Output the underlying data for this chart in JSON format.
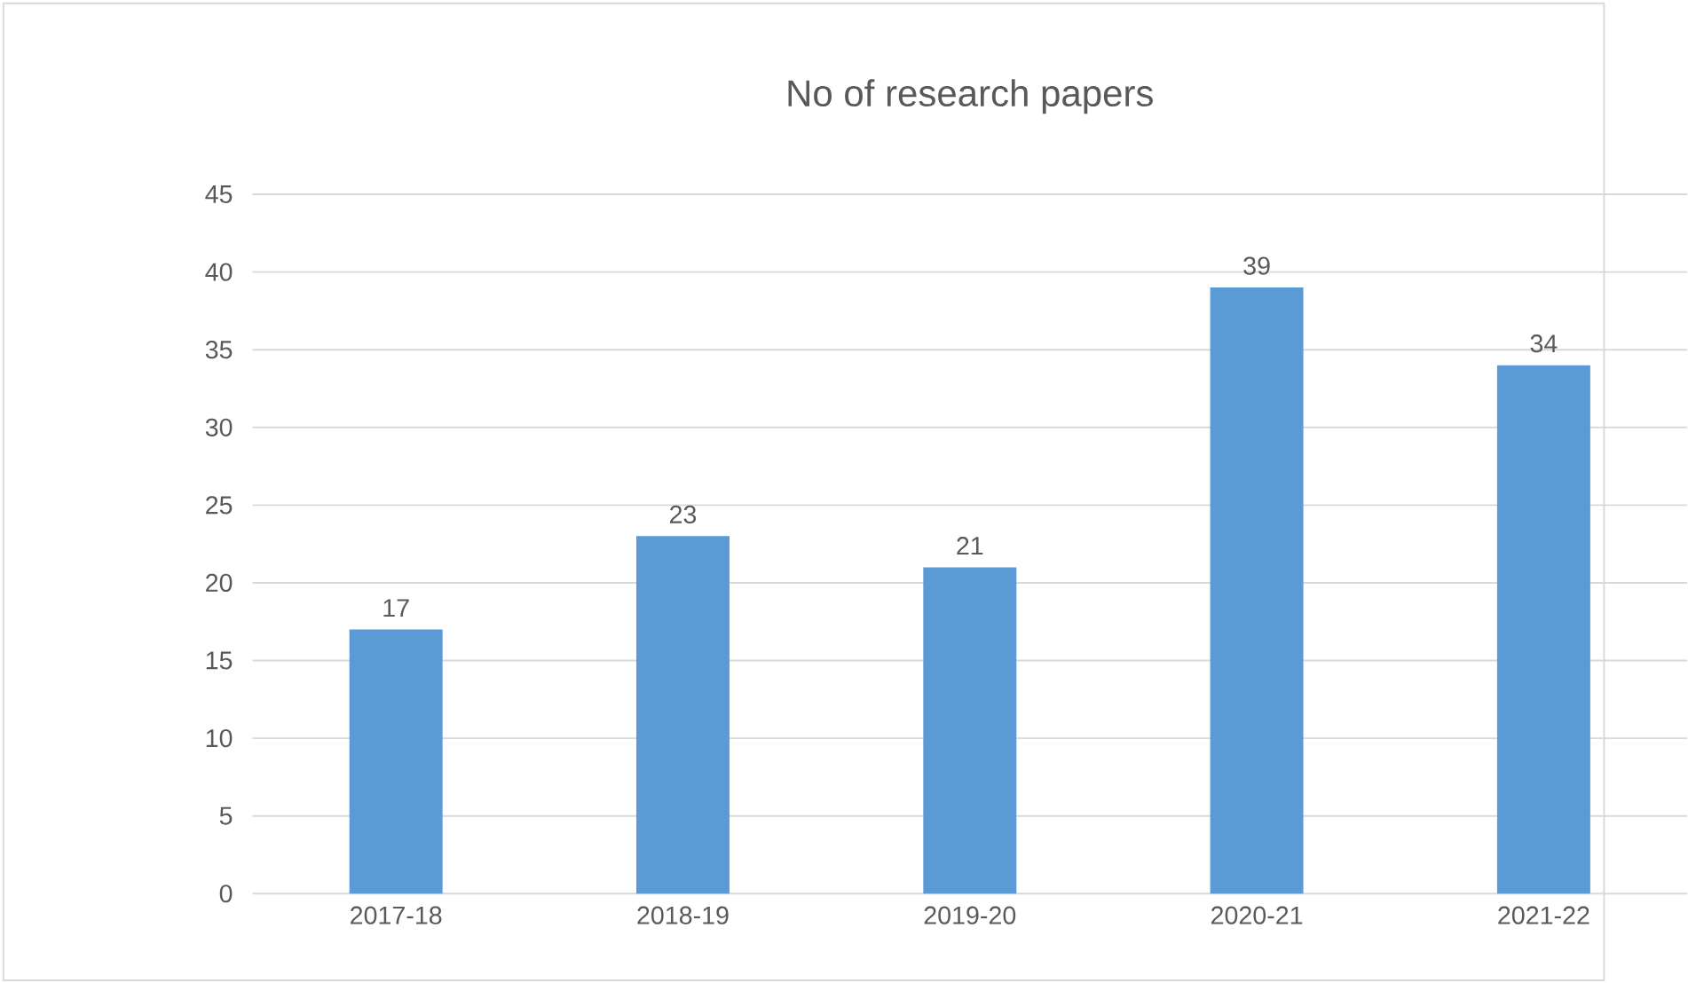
{
  "chart_data": {
    "type": "bar",
    "title": "No of research papers",
    "categories": [
      "2017-18",
      "2018-19",
      "2019-20",
      "2020-21",
      "2021-22"
    ],
    "values": [
      17,
      23,
      21,
      39,
      34
    ],
    "color": "#5b9bd5",
    "ylim": [
      0,
      45
    ],
    "yticks": [
      0,
      5,
      10,
      15,
      20,
      25,
      30,
      35,
      40,
      45
    ],
    "grid": "y",
    "data_labels": true
  }
}
